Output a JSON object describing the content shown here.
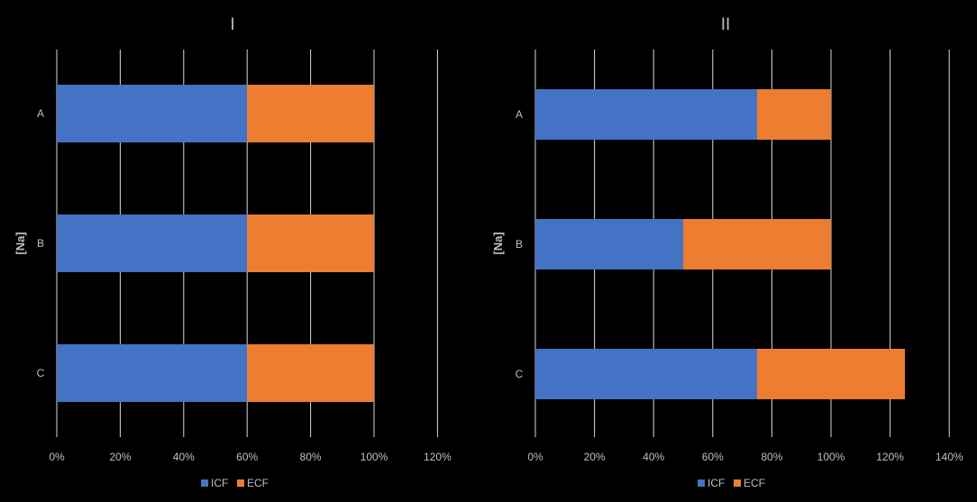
{
  "chart_data": [
    {
      "type": "bar",
      "orientation": "horizontal",
      "stacked": true,
      "title": "I",
      "ylabel": "[Na]",
      "categories": [
        "A",
        "B",
        "C"
      ],
      "xlim": [
        0,
        120
      ],
      "xticks": [
        "0%",
        "20%",
        "40%",
        "60%",
        "80%",
        "100%",
        "120%"
      ],
      "grid": true,
      "legend_position": "bottom",
      "series": [
        {
          "name": "ICF",
          "color": "#4472c4",
          "values": [
            60,
            60,
            60
          ]
        },
        {
          "name": "ECF",
          "color": "#ed7d31",
          "values": [
            40,
            40,
            40
          ]
        }
      ]
    },
    {
      "type": "bar",
      "orientation": "horizontal",
      "stacked": true,
      "title": "II",
      "ylabel": "[Na]",
      "categories": [
        "A",
        "B",
        "C"
      ],
      "xlim": [
        0,
        140
      ],
      "xticks": [
        "0%",
        "20%",
        "40%",
        "60%",
        "80%",
        "100%",
        "120%",
        "140%"
      ],
      "grid": true,
      "legend_position": "bottom",
      "series": [
        {
          "name": "ICF",
          "color": "#4472c4",
          "values": [
            75,
            50,
            75
          ]
        },
        {
          "name": "ECF",
          "color": "#ed7d31",
          "values": [
            25,
            50,
            50
          ]
        }
      ]
    }
  ],
  "colors": {
    "background": "#000000",
    "gridline": "#d9d9d9",
    "text": "#bfbfbf"
  }
}
